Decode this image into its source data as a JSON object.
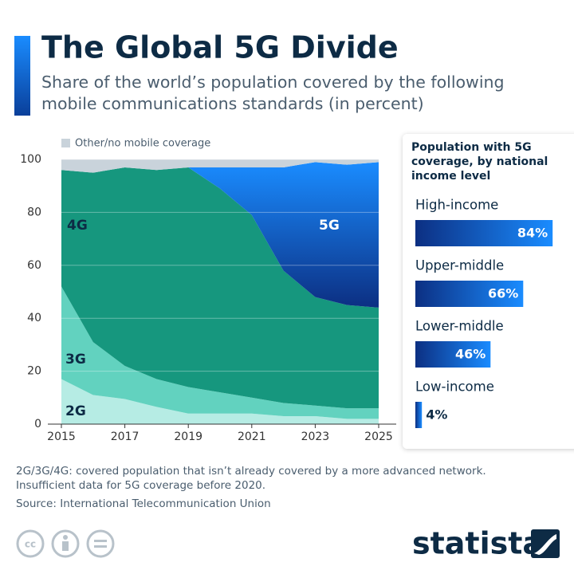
{
  "chart_data": [
    {
      "type": "area",
      "stacked": true,
      "title": "The Global 5G Divide",
      "subtitle": "Share of the world’s population covered by the following mobile communications standards (in percent)",
      "x": [
        2015,
        2016,
        2017,
        2018,
        2019,
        2020,
        2021,
        2022,
        2023,
        2024,
        2025
      ],
      "xlim": [
        2015,
        2025
      ],
      "xticks": [
        2015,
        2017,
        2019,
        2021,
        2023,
        2025
      ],
      "ylim": [
        0,
        100
      ],
      "yticks": [
        0,
        20,
        40,
        60,
        80,
        100
      ],
      "grid": true,
      "series": [
        {
          "name": "2G",
          "color": "#b6ece4",
          "values": [
            17,
            11,
            9.5,
            6.5,
            4,
            4,
            4,
            3,
            3,
            2,
            2
          ]
        },
        {
          "name": "3G",
          "color": "#62d2bf",
          "values": [
            35,
            20,
            12.5,
            10.5,
            10,
            8,
            6,
            5,
            4,
            4,
            4
          ]
        },
        {
          "name": "4G",
          "color": "#16977e",
          "values": [
            44,
            64,
            75,
            79,
            83,
            77,
            69,
            50,
            41,
            39,
            38
          ]
        },
        {
          "name": "5G",
          "color": "#0d5fc4",
          "values": [
            null,
            null,
            null,
            null,
            0,
            8,
            18,
            39,
            51,
            53,
            55
          ]
        },
        {
          "name": "Other/no mobile coverage",
          "color": "#c9d3db",
          "values": [
            4,
            5,
            3,
            4,
            3,
            3,
            3,
            3,
            1,
            2,
            1
          ]
        }
      ]
    },
    {
      "type": "hbar",
      "title": "Population with 5G coverage, by national income level",
      "categories": [
        "High-income",
        "Upper-middle",
        "Lower-middle",
        "Low-income"
      ],
      "values": [
        84,
        66,
        46,
        4
      ],
      "value_labels": [
        "84%",
        "66%",
        "46%",
        "4%"
      ],
      "color": "#1a8cff"
    }
  ],
  "notes": [
    "2G/3G/4G: covered population that isn’t already covered by a more advanced network.",
    "Insufficient data for 5G coverage before 2020."
  ],
  "source": "Source: International Telecommunication Union",
  "brand": "statista"
}
